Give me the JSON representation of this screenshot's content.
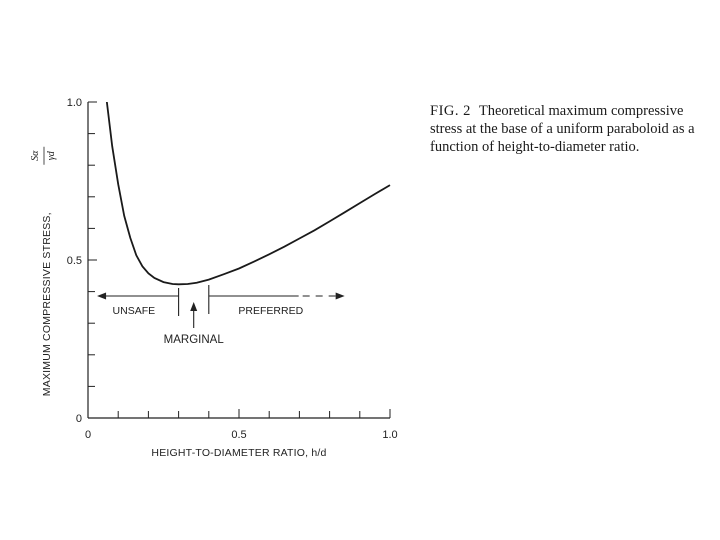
{
  "caption": {
    "figure_label": "FIG. 2",
    "text": "Theoretical maximum compressive stress at the base of a uniform paraboloid as a function of height-to-diameter ratio."
  },
  "chart_data": {
    "type": "line",
    "xlabel": "HEIGHT-TO-DIAMETER RATIO, h/d",
    "ylabel": "MAXIMUM COMPRESSIVE STRESS,",
    "ylabel_fraction": {
      "numerator": "Sα",
      "denominator": "γd"
    },
    "xlim": [
      0,
      1.0
    ],
    "ylim": [
      0,
      1.0
    ],
    "x_tick_labels": [
      {
        "value": 0,
        "label": "0"
      },
      {
        "value": 0.5,
        "label": "0.5"
      },
      {
        "value": 1.0,
        "label": "1.0"
      }
    ],
    "y_tick_labels": [
      {
        "value": 0,
        "label": "0"
      },
      {
        "value": 0.5,
        "label": "0.5"
      },
      {
        "value": 1.0,
        "label": "1.0"
      }
    ],
    "minor_tick_step": 0.1,
    "grid": false,
    "series": [
      {
        "x": [
          0.06,
          0.08,
          0.1,
          0.12,
          0.14,
          0.16,
          0.18,
          0.2,
          0.22,
          0.25,
          0.28,
          0.3,
          0.33,
          0.36,
          0.4,
          0.45,
          0.5,
          0.55,
          0.6,
          0.65,
          0.7,
          0.75,
          0.8,
          0.85,
          0.9,
          0.95,
          1.0
        ],
        "y": [
          1.02,
          0.86,
          0.74,
          0.64,
          0.57,
          0.515,
          0.48,
          0.458,
          0.443,
          0.43,
          0.424,
          0.423,
          0.424,
          0.428,
          0.438,
          0.455,
          0.473,
          0.495,
          0.518,
          0.542,
          0.568,
          0.594,
          0.622,
          0.651,
          0.68,
          0.709,
          0.737
        ]
      }
    ],
    "regions": {
      "unsafe": {
        "label": "UNSAFE",
        "x_from": 0.03,
        "x_to": 0.3
      },
      "marginal": {
        "label": "MARGINAL",
        "x_from": 0.3,
        "x_to": 0.4
      },
      "preferred": {
        "label": "PREFERRED",
        "x_from": 0.4,
        "x_to": 0.83
      }
    }
  }
}
